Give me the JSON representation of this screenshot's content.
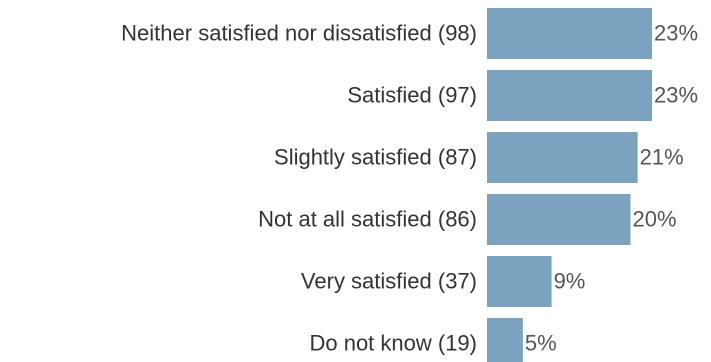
{
  "chart_data": {
    "type": "bar",
    "orientation": "horizontal",
    "categories": [
      "Neither satisfied nor dissatisfied (98)",
      "Satisfied (97)",
      "Slightly satisfied (87)",
      "Not at all satisfied (86)",
      "Very satisfied (37)",
      "Do not know (19)"
    ],
    "values": [
      23,
      23,
      21,
      20,
      9,
      5
    ],
    "value_labels": [
      "23%",
      "23%",
      "21%",
      "20%",
      "9%",
      "5%"
    ],
    "color": "#7ba3c0"
  }
}
